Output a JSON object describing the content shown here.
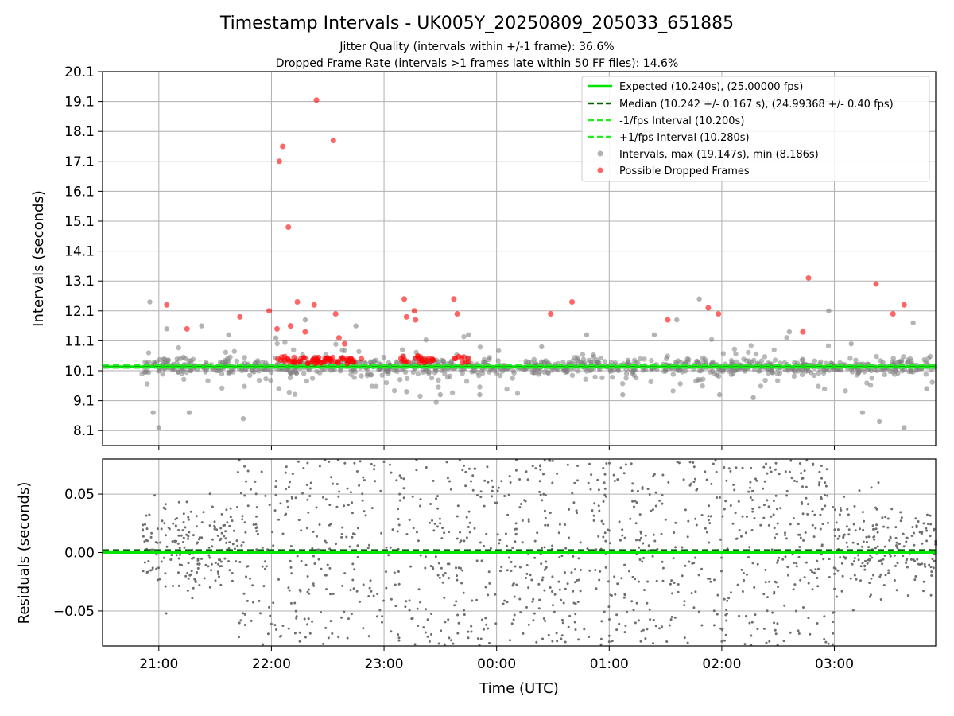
{
  "chart_data": [
    {
      "type": "scatter",
      "panel": "top",
      "title": "Timestamp Intervals - UK005Y_20250809_205033_651885",
      "subtitle_lines": [
        "Jitter Quality (intervals within +/-1 frame): 36.6%",
        "Dropped Frame Rate (intervals >1 frames late within 50 FF files): 14.6%"
      ],
      "ylabel": "Intervals (seconds)",
      "ylim": [
        7.6,
        20.1
      ],
      "yticks": [
        "20.1",
        "19.1",
        "18.1",
        "17.1",
        "16.1",
        "15.1",
        "14.1",
        "13.1",
        "12.1",
        "11.1",
        "10.1",
        "9.1",
        "8.1"
      ],
      "ytick_values": [
        20.1,
        19.1,
        18.1,
        17.1,
        16.1,
        15.1,
        14.1,
        13.1,
        12.1,
        11.1,
        10.1,
        9.1,
        8.1
      ],
      "grid": true,
      "legend_position": "top-right",
      "reference_lines": [
        {
          "label": "Expected (10.240s), (25.00000 fps)",
          "y": 10.24,
          "style": "solid",
          "color": "#00e600"
        },
        {
          "label": "Median (10.242 +/- 0.167 s), (24.99368 +/- 0.40 fps)",
          "y": 10.242,
          "style": "dashed",
          "color": "#006400"
        },
        {
          "label": "-1/fps Interval (10.200s)",
          "y": 10.2,
          "style": "dashed",
          "color": "#22ee22"
        },
        {
          "label": "+1/fps Interval (10.280s)",
          "y": 10.28,
          "style": "dashed",
          "color": "#22ee22"
        }
      ],
      "series": [
        {
          "label": "Intervals, max (19.147s), min (8.186s)",
          "color": "#808080",
          "marker": "circle",
          "points_approx": 2400,
          "outliers": [
            [
              20.92,
              12.4
            ],
            [
              20.95,
              8.7
            ],
            [
              21.0,
              8.2
            ],
            [
              21.07,
              11.5
            ],
            [
              21.27,
              8.7
            ],
            [
              21.38,
              11.6
            ],
            [
              21.62,
              11.3
            ],
            [
              21.75,
              8.5
            ],
            [
              22.04,
              11.2
            ],
            [
              22.3,
              11.8
            ],
            [
              22.75,
              11.6
            ],
            [
              23.2,
              9.4
            ],
            [
              23.5,
              9.3
            ],
            [
              23.75,
              11.3
            ],
            [
              23.85,
              9.3
            ],
            [
              0.4,
              10.9
            ],
            [
              0.8,
              11.3
            ],
            [
              1.12,
              9.3
            ],
            [
              1.4,
              11.3
            ],
            [
              1.6,
              11.8
            ],
            [
              1.8,
              12.5
            ],
            [
              1.98,
              9.3
            ],
            [
              2.28,
              9.2
            ],
            [
              2.6,
              11.4
            ],
            [
              2.95,
              12.1
            ],
            [
              3.15,
              11.0
            ],
            [
              3.25,
              8.7
            ],
            [
              3.4,
              8.4
            ],
            [
              3.62,
              8.2
            ],
            [
              3.7,
              11.7
            ],
            [
              3.82,
              9.5
            ]
          ]
        },
        {
          "label": "Possible Dropped Frames",
          "color": "#ff0000",
          "marker": "circle",
          "points": [
            [
              21.07,
              12.3
            ],
            [
              21.25,
              11.5
            ],
            [
              21.72,
              11.9
            ],
            [
              21.98,
              12.1
            ],
            [
              22.05,
              11.5
            ],
            [
              22.07,
              17.1
            ],
            [
              22.1,
              17.6
            ],
            [
              22.15,
              14.9
            ],
            [
              22.17,
              11.6
            ],
            [
              22.23,
              12.4
            ],
            [
              22.3,
              11.4
            ],
            [
              22.4,
              19.15
            ],
            [
              22.38,
              12.3
            ],
            [
              22.55,
              17.8
            ],
            [
              22.57,
              12.0
            ],
            [
              22.6,
              11.2
            ],
            [
              22.65,
              11.0
            ],
            [
              22.8,
              10.5
            ],
            [
              23.18,
              12.5
            ],
            [
              23.2,
              11.9
            ],
            [
              23.27,
              12.1
            ],
            [
              23.28,
              11.8
            ],
            [
              23.3,
              10.6
            ],
            [
              23.62,
              12.5
            ],
            [
              23.65,
              12.0
            ],
            [
              23.75,
              10.4
            ],
            [
              0.48,
              12.0
            ],
            [
              0.67,
              12.4
            ],
            [
              1.52,
              11.8
            ],
            [
              1.88,
              12.2
            ],
            [
              1.97,
              12.0
            ],
            [
              2.72,
              11.4
            ],
            [
              2.77,
              13.2
            ],
            [
              3.37,
              13.0
            ],
            [
              3.52,
              12.0
            ],
            [
              3.62,
              12.3
            ]
          ]
        }
      ]
    },
    {
      "type": "scatter",
      "panel": "bottom",
      "ylabel": "Residuals (seconds)",
      "xlabel": "Time (UTC)",
      "ylim": [
        -0.08,
        0.08
      ],
      "yticks": [
        "0.05",
        "0.00",
        "−0.05"
      ],
      "ytick_values": [
        0.05,
        0.0,
        -0.05
      ],
      "xlim_hours": [
        20.5,
        27.9
      ],
      "xticks": [
        "21:00",
        "22:00",
        "23:00",
        "00:00",
        "01:00",
        "02:00",
        "03:00"
      ],
      "xtick_values": [
        21,
        22,
        23,
        24,
        25,
        26,
        27
      ],
      "grid": true,
      "reference_lines": [
        {
          "label": "Expected",
          "y": 0.0,
          "style": "solid",
          "color": "#00e600"
        },
        {
          "label": "Median",
          "y": 0.002,
          "style": "dashed",
          "color": "#006400"
        }
      ],
      "series": [
        {
          "label": "Residuals",
          "color": "#6e6e6e",
          "marker": "dot",
          "points_approx": 1500
        }
      ]
    }
  ]
}
